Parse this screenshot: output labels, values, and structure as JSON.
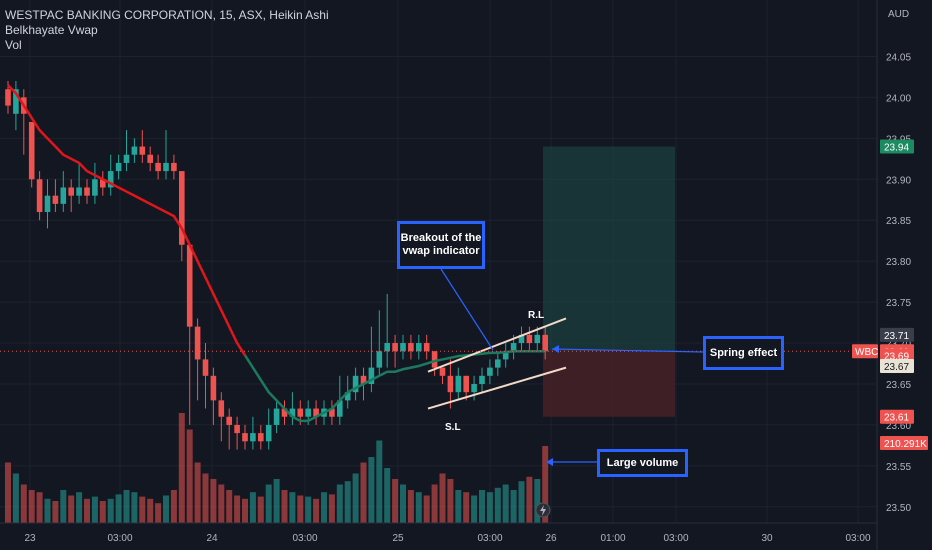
{
  "header": {
    "symbol_line": "WESTPAC BANKING CORPORATION, 15, ASX, Heikin Ashi",
    "indicator_1": "Belkhayate Vwap",
    "indicator_2": "Vol"
  },
  "currency": "AUD",
  "colors": {
    "background": "#131722",
    "up": "#26a69a",
    "down": "#ef5350",
    "vwap": "#e0161b",
    "callout_border": "#2962ff",
    "target_zone": "#1e4d47",
    "stop_zone": "#4d2328"
  },
  "chart_data": {
    "type": "candlestick",
    "title": "",
    "y_axis": {
      "ticks": [
        "24.05",
        "24.00",
        "23.95",
        "23.90",
        "23.85",
        "23.80",
        "23.75",
        "23.70",
        "23.65",
        "23.60",
        "23.55",
        "23.50"
      ],
      "ylim": [
        23.49,
        24.075
      ]
    },
    "x_axis": {
      "ticks": [
        "23",
        "03:00",
        "24",
        "03:00",
        "25",
        "03:00",
        "26",
        "01:00",
        "03:00",
        "30",
        "03:00"
      ]
    },
    "price_labels": [
      {
        "label": "23.94",
        "value": 23.94,
        "color": "#1e8a62"
      },
      {
        "label": "23.71",
        "value": 23.71,
        "color": "#3a3e4a"
      },
      {
        "label": "23.69",
        "value": 23.69,
        "color": "#ef5350"
      },
      {
        "label": "23.69",
        "value": 23.685,
        "color": "#ef5350"
      },
      {
        "label": "23.67",
        "value": 23.672,
        "color": "#e8e3d4"
      },
      {
        "label": "23.61",
        "value": 23.61,
        "color": "#ef5350"
      },
      {
        "label": "210.291K",
        "value": 23.578,
        "color": "#ef5350"
      }
    ],
    "symbol_badge": "WBC",
    "candles": [
      [
        24.01,
        23.99,
        24.02,
        23.98
      ],
      [
        23.98,
        24.01,
        24.02,
        23.96
      ],
      [
        24.0,
        23.98,
        24.01,
        23.93
      ],
      [
        23.97,
        23.9,
        23.97,
        23.89
      ],
      [
        23.9,
        23.86,
        23.91,
        23.85
      ],
      [
        23.86,
        23.88,
        23.9,
        23.84
      ],
      [
        23.88,
        23.87,
        23.9,
        23.86
      ],
      [
        23.87,
        23.89,
        23.91,
        23.86
      ],
      [
        23.89,
        23.88,
        23.9,
        23.86
      ],
      [
        23.88,
        23.89,
        23.92,
        23.87
      ],
      [
        23.89,
        23.88,
        23.9,
        23.87
      ],
      [
        23.88,
        23.9,
        23.92,
        23.87
      ],
      [
        23.9,
        23.89,
        23.91,
        23.88
      ],
      [
        23.89,
        23.91,
        23.93,
        23.88
      ],
      [
        23.91,
        23.92,
        23.93,
        23.9
      ],
      [
        23.92,
        23.93,
        23.96,
        23.91
      ],
      [
        23.93,
        23.94,
        23.95,
        23.92
      ],
      [
        23.94,
        23.93,
        23.96,
        23.92
      ],
      [
        23.93,
        23.92,
        23.94,
        23.91
      ],
      [
        23.92,
        23.91,
        23.93,
        23.9
      ],
      [
        23.91,
        23.92,
        23.96,
        23.9
      ],
      [
        23.92,
        23.91,
        23.93,
        23.9
      ],
      [
        23.91,
        23.82,
        23.91,
        23.8
      ],
      [
        23.82,
        23.72,
        23.82,
        23.6
      ],
      [
        23.72,
        23.68,
        23.73,
        23.63
      ],
      [
        23.68,
        23.66,
        23.7,
        23.62
      ],
      [
        23.66,
        23.63,
        23.67,
        23.6
      ],
      [
        23.63,
        23.61,
        23.64,
        23.58
      ],
      [
        23.61,
        23.6,
        23.62,
        23.57
      ],
      [
        23.6,
        23.59,
        23.61,
        23.57
      ],
      [
        23.59,
        23.58,
        23.6,
        23.57
      ],
      [
        23.58,
        23.59,
        23.61,
        23.57
      ],
      [
        23.59,
        23.58,
        23.6,
        23.57
      ],
      [
        23.58,
        23.6,
        23.62,
        23.57
      ],
      [
        23.6,
        23.62,
        23.63,
        23.59
      ],
      [
        23.62,
        23.61,
        23.63,
        23.6
      ],
      [
        23.61,
        23.62,
        23.64,
        23.6
      ],
      [
        23.62,
        23.61,
        23.63,
        23.6
      ],
      [
        23.61,
        23.62,
        23.63,
        23.6
      ],
      [
        23.62,
        23.61,
        23.63,
        23.6
      ],
      [
        23.61,
        23.62,
        23.63,
        23.6
      ],
      [
        23.62,
        23.61,
        23.63,
        23.6
      ],
      [
        23.61,
        23.63,
        23.66,
        23.6
      ],
      [
        23.63,
        23.64,
        23.66,
        23.62
      ],
      [
        23.64,
        23.66,
        23.67,
        23.63
      ],
      [
        23.66,
        23.65,
        23.67,
        23.63
      ],
      [
        23.65,
        23.67,
        23.72,
        23.64
      ],
      [
        23.67,
        23.69,
        23.74,
        23.66
      ],
      [
        23.69,
        23.7,
        23.76,
        23.67
      ],
      [
        23.7,
        23.69,
        23.71,
        23.67
      ],
      [
        23.69,
        23.7,
        23.71,
        23.68
      ],
      [
        23.7,
        23.69,
        23.71,
        23.68
      ],
      [
        23.69,
        23.7,
        23.71,
        23.68
      ],
      [
        23.7,
        23.69,
        23.71,
        23.68
      ],
      [
        23.69,
        23.67,
        23.69,
        23.66
      ],
      [
        23.67,
        23.66,
        23.67,
        23.65
      ],
      [
        23.66,
        23.64,
        23.68,
        23.62
      ],
      [
        23.64,
        23.66,
        23.67,
        23.63
      ],
      [
        23.66,
        23.64,
        23.66,
        23.63
      ],
      [
        23.64,
        23.65,
        23.66,
        23.63
      ],
      [
        23.65,
        23.66,
        23.67,
        23.64
      ],
      [
        23.66,
        23.67,
        23.68,
        23.65
      ],
      [
        23.67,
        23.68,
        23.69,
        23.66
      ],
      [
        23.68,
        23.69,
        23.7,
        23.67
      ],
      [
        23.69,
        23.7,
        23.71,
        23.68
      ],
      [
        23.7,
        23.71,
        23.72,
        23.69
      ],
      [
        23.71,
        23.7,
        23.72,
        23.69
      ],
      [
        23.7,
        23.71,
        23.72,
        23.69
      ],
      [
        23.71,
        23.69,
        23.72,
        23.68
      ]
    ],
    "volumes": [
      0.55,
      0.45,
      0.35,
      0.3,
      0.28,
      0.22,
      0.2,
      0.3,
      0.25,
      0.28,
      0.22,
      0.24,
      0.2,
      0.22,
      0.26,
      0.3,
      0.28,
      0.24,
      0.22,
      0.18,
      0.25,
      0.3,
      1.0,
      0.85,
      0.55,
      0.45,
      0.4,
      0.35,
      0.3,
      0.25,
      0.22,
      0.28,
      0.24,
      0.35,
      0.4,
      0.3,
      0.28,
      0.25,
      0.24,
      0.22,
      0.28,
      0.26,
      0.35,
      0.38,
      0.45,
      0.55,
      0.6,
      0.75,
      0.5,
      0.4,
      0.35,
      0.3,
      0.28,
      0.25,
      0.35,
      0.45,
      0.4,
      0.3,
      0.28,
      0.25,
      0.3,
      0.28,
      0.32,
      0.35,
      0.3,
      0.38,
      0.42,
      0.4,
      0.7
    ],
    "vwap": [
      24.015,
      24.005,
      23.99,
      23.975,
      23.96,
      23.95,
      23.94,
      23.93,
      23.925,
      23.92,
      23.91,
      23.905,
      23.9,
      23.895,
      23.89,
      23.885,
      23.88,
      23.875,
      23.87,
      23.865,
      23.86,
      23.855,
      23.84,
      23.82,
      23.8,
      23.78,
      23.76,
      23.74,
      23.72,
      23.7,
      23.685,
      23.67,
      23.655,
      23.64,
      23.63,
      23.62,
      23.61,
      23.605,
      23.605,
      23.61,
      23.615,
      23.62,
      23.63,
      23.64,
      23.645,
      23.65,
      23.655,
      23.66,
      23.665,
      23.665,
      23.668,
      23.67,
      23.672,
      23.675,
      23.678,
      23.68,
      23.682,
      23.684,
      23.685,
      23.686,
      23.687,
      23.688,
      23.688,
      23.689,
      23.69,
      23.69,
      23.69,
      23.69,
      23.69
    ],
    "vwap_switch_index": 30,
    "channel": {
      "upper": [
        [
          23.665,
          23.705
        ],
        [
          23.73,
          23.74
        ]
      ],
      "lower": [
        [
          23.62,
          23.705
        ],
        [
          23.67,
          23.71
        ]
      ]
    },
    "annotations": {
      "rl_label": "R.L",
      "sl_label": "S.L",
      "callouts": [
        {
          "id": "breakout",
          "text": "Breakout of the vwap indicator"
        },
        {
          "id": "spring",
          "text": "Spring effect"
        },
        {
          "id": "volume",
          "text": "Large volume"
        }
      ]
    },
    "position": {
      "entry": 23.69,
      "target": 23.94,
      "stop": 23.61
    }
  }
}
